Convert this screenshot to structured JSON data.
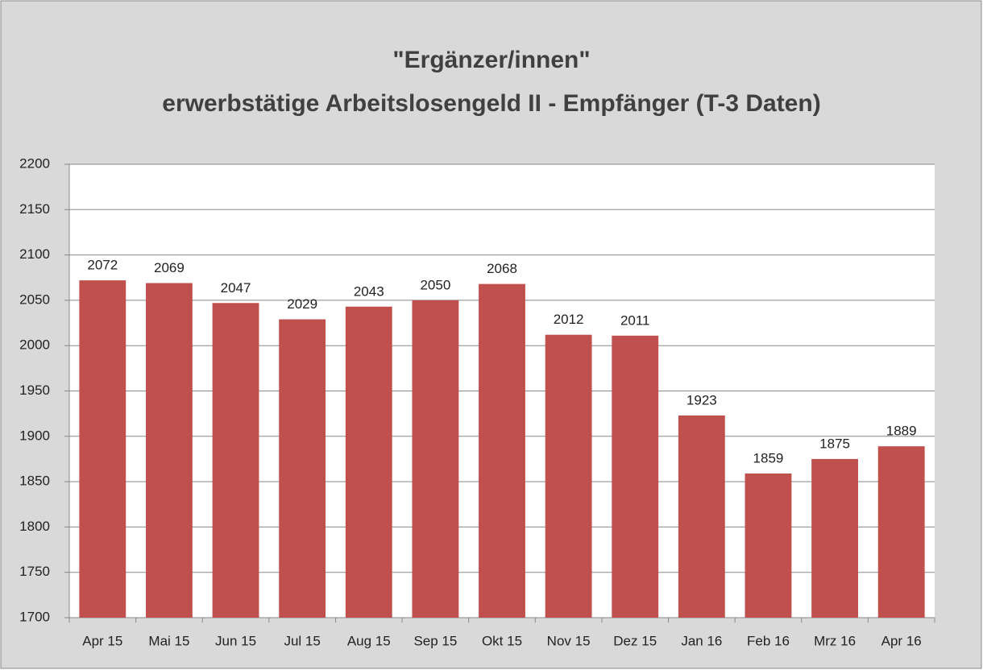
{
  "chart_data": {
    "type": "bar",
    "title": [
      "\"Ergänzer/innen\"",
      "erwerbstätige Arbeitslosengeld II - Empfänger (T-3 Daten)"
    ],
    "categories": [
      "Apr 15",
      "Mai 15",
      "Jun 15",
      "Jul 15",
      "Aug 15",
      "Sep 15",
      "Okt 15",
      "Nov 15",
      "Dez 15",
      "Jan 16",
      "Feb 16",
      "Mrz 16",
      "Apr 16"
    ],
    "values": [
      2072,
      2069,
      2047,
      2029,
      2043,
      2050,
      2068,
      2012,
      2011,
      1923,
      1859,
      1875,
      1889
    ],
    "color": "#c0504d",
    "ylim": [
      1700,
      2200
    ],
    "yticks": [
      1700,
      1750,
      1800,
      1850,
      1900,
      1950,
      2000,
      2050,
      2100,
      2150,
      2200
    ],
    "grid": true
  }
}
